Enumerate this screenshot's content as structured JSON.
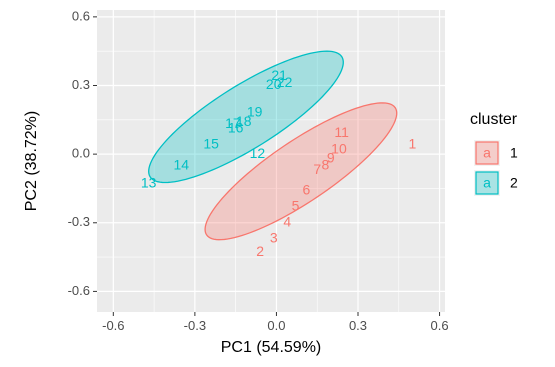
{
  "chart_data": {
    "type": "scatter",
    "xlabel": "PC1 (54.59%)",
    "ylabel": "PC2 (38.72%)",
    "xlim": [
      -0.66,
      0.62
    ],
    "ylim": [
      -0.69,
      0.63
    ],
    "xticks": [
      -0.6,
      -0.3,
      0.0,
      0.3,
      0.6
    ],
    "xtick_labels": [
      "-0.6",
      "-0.3",
      "0.0",
      "0.3",
      "0.6"
    ],
    "yticks": [
      -0.6,
      -0.3,
      0.0,
      0.3,
      0.6
    ],
    "ytick_labels": [
      "-0.6",
      "-0.3",
      "0.0",
      "0.3",
      "0.6"
    ],
    "grid": true,
    "background": "#ebebeb",
    "legend": {
      "title": "cluster",
      "position": "right",
      "key_glyph": "a",
      "entries": [
        {
          "label": "1",
          "series": 0
        },
        {
          "label": "2",
          "series": 1
        }
      ]
    },
    "series": [
      {
        "name": "1",
        "color": "#f8766d",
        "fill": "#f8766d",
        "ellipse": {
          "cx": 0.09,
          "cy": -0.075,
          "rx": 0.445,
          "ry": 0.125,
          "angle_deg": 39.5
        },
        "points": [
          {
            "label": "1",
            "x": 0.5,
            "y": 0.04
          },
          {
            "label": "2",
            "x": -0.06,
            "y": -0.43
          },
          {
            "label": "3",
            "x": -0.01,
            "y": -0.37
          },
          {
            "label": "4",
            "x": 0.04,
            "y": -0.3
          },
          {
            "label": "5",
            "x": 0.07,
            "y": -0.23
          },
          {
            "label": "6",
            "x": 0.11,
            "y": -0.16
          },
          {
            "label": "7",
            "x": 0.15,
            "y": -0.07
          },
          {
            "label": "8",
            "x": 0.18,
            "y": -0.05
          },
          {
            "label": "9",
            "x": 0.2,
            "y": -0.02
          },
          {
            "label": "10",
            "x": 0.23,
            "y": 0.02
          },
          {
            "label": "11",
            "x": 0.24,
            "y": 0.09
          }
        ]
      },
      {
        "name": "2",
        "color": "#00bfc4",
        "fill": "#00bfc4",
        "ellipse": {
          "cx": -0.112,
          "cy": 0.163,
          "rx": 0.44,
          "ry": 0.13,
          "angle_deg": 37.5
        },
        "points": [
          {
            "label": "12",
            "x": -0.07,
            "y": 0.0
          },
          {
            "label": "13",
            "x": -0.47,
            "y": -0.13
          },
          {
            "label": "14",
            "x": -0.35,
            "y": -0.05
          },
          {
            "label": "15",
            "x": -0.24,
            "y": 0.04
          },
          {
            "label": "16",
            "x": -0.15,
            "y": 0.11
          },
          {
            "label": "17",
            "x": -0.16,
            "y": 0.13
          },
          {
            "label": "18",
            "x": -0.12,
            "y": 0.14
          },
          {
            "label": "19",
            "x": -0.08,
            "y": 0.18
          },
          {
            "label": "20",
            "x": -0.01,
            "y": 0.3
          },
          {
            "label": "21",
            "x": 0.01,
            "y": 0.34
          },
          {
            "label": "22",
            "x": 0.03,
            "y": 0.31
          }
        ]
      }
    ]
  }
}
